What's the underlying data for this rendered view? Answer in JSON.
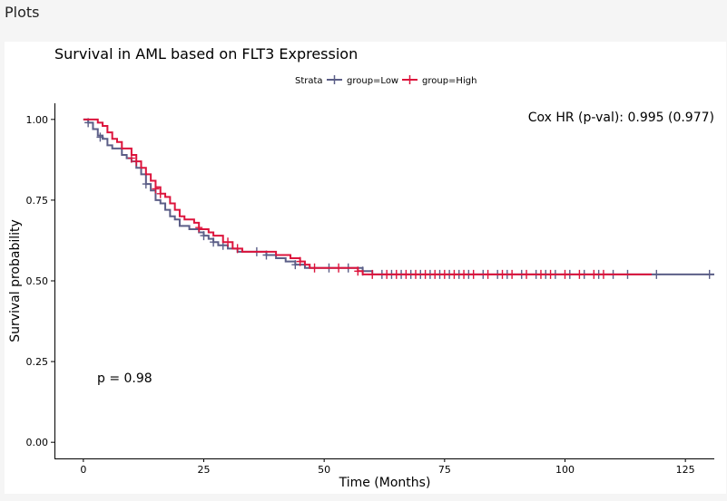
{
  "panel": {
    "title": "Plots"
  },
  "chart_data": {
    "type": "line",
    "subtype": "kaplan-meier",
    "title": "Survival in AML based on FLT3 Expression",
    "xlabel": "Time (Months)",
    "ylabel": "Survival probability",
    "xlim": [
      -6,
      131
    ],
    "ylim": [
      -0.05,
      1.05
    ],
    "xticks": [
      0,
      25,
      50,
      75,
      100,
      125
    ],
    "ytick_labels": [
      "0.00",
      "0.25",
      "0.50",
      "0.75",
      "1.00"
    ],
    "yticks": [
      0,
      0.25,
      0.5,
      0.75,
      1.0
    ],
    "legend": {
      "title": "Strata",
      "position": "top"
    },
    "annotations": {
      "cox": "Cox HR (p-val): 0.995 (0.977)",
      "pval": "p = 0.98"
    },
    "series": [
      {
        "name": "group=Low",
        "color": "#5b5e87",
        "steps": [
          [
            0,
            1.0
          ],
          [
            1,
            0.99
          ],
          [
            2,
            0.97
          ],
          [
            3,
            0.95
          ],
          [
            4,
            0.94
          ],
          [
            5,
            0.92
          ],
          [
            6,
            0.91
          ],
          [
            8,
            0.89
          ],
          [
            9,
            0.88
          ],
          [
            10,
            0.87
          ],
          [
            11,
            0.85
          ],
          [
            12,
            0.83
          ],
          [
            13,
            0.8
          ],
          [
            14,
            0.78
          ],
          [
            15,
            0.75
          ],
          [
            16,
            0.74
          ],
          [
            17,
            0.72
          ],
          [
            18,
            0.7
          ],
          [
            19,
            0.69
          ],
          [
            20,
            0.67
          ],
          [
            22,
            0.66
          ],
          [
            24,
            0.65
          ],
          [
            25,
            0.64
          ],
          [
            26,
            0.63
          ],
          [
            27,
            0.62
          ],
          [
            28,
            0.61
          ],
          [
            30,
            0.6
          ],
          [
            32,
            0.59
          ],
          [
            37,
            0.59
          ],
          [
            38,
            0.58
          ],
          [
            40,
            0.57
          ],
          [
            42,
            0.56
          ],
          [
            44,
            0.55
          ],
          [
            46,
            0.54
          ],
          [
            58,
            0.53
          ],
          [
            60,
            0.52
          ],
          [
            131,
            0.52
          ]
        ],
        "censored": [
          [
            1,
            0.99
          ],
          [
            3.5,
            0.945
          ],
          [
            13,
            0.8
          ],
          [
            25,
            0.64
          ],
          [
            27,
            0.62
          ],
          [
            29,
            0.61
          ],
          [
            36,
            0.59
          ],
          [
            38,
            0.58
          ],
          [
            44,
            0.55
          ],
          [
            51,
            0.54
          ],
          [
            55,
            0.54
          ],
          [
            58,
            0.53
          ],
          [
            62,
            0.52
          ],
          [
            64,
            0.52
          ],
          [
            66,
            0.52
          ],
          [
            68,
            0.52
          ],
          [
            70,
            0.52
          ],
          [
            72,
            0.52
          ],
          [
            74,
            0.52
          ],
          [
            76,
            0.52
          ],
          [
            78,
            0.52
          ],
          [
            80,
            0.52
          ],
          [
            83,
            0.52
          ],
          [
            86,
            0.52
          ],
          [
            88,
            0.52
          ],
          [
            91,
            0.52
          ],
          [
            94,
            0.52
          ],
          [
            96,
            0.52
          ],
          [
            98,
            0.52
          ],
          [
            101,
            0.52
          ],
          [
            104,
            0.52
          ],
          [
            107,
            0.52
          ],
          [
            110,
            0.52
          ],
          [
            113,
            0.52
          ],
          [
            119,
            0.52
          ],
          [
            130,
            0.52
          ]
        ]
      },
      {
        "name": "group=High",
        "color": "#dc143c",
        "steps": [
          [
            0,
            1.0
          ],
          [
            3,
            0.99
          ],
          [
            4,
            0.98
          ],
          [
            5,
            0.96
          ],
          [
            6,
            0.94
          ],
          [
            7,
            0.93
          ],
          [
            8,
            0.91
          ],
          [
            10,
            0.89
          ],
          [
            11,
            0.87
          ],
          [
            12,
            0.85
          ],
          [
            13,
            0.83
          ],
          [
            14,
            0.81
          ],
          [
            15,
            0.79
          ],
          [
            16,
            0.77
          ],
          [
            17,
            0.76
          ],
          [
            18,
            0.74
          ],
          [
            19,
            0.72
          ],
          [
            20,
            0.7
          ],
          [
            21,
            0.69
          ],
          [
            23,
            0.68
          ],
          [
            24,
            0.66
          ],
          [
            26,
            0.65
          ],
          [
            27,
            0.64
          ],
          [
            29,
            0.62
          ],
          [
            31,
            0.6
          ],
          [
            33,
            0.59
          ],
          [
            39,
            0.59
          ],
          [
            40,
            0.58
          ],
          [
            43,
            0.57
          ],
          [
            45,
            0.56
          ],
          [
            46,
            0.55
          ],
          [
            47,
            0.54
          ],
          [
            57,
            0.53
          ],
          [
            58,
            0.52
          ],
          [
            118,
            0.52
          ]
        ],
        "censored": [
          [
            10,
            0.88
          ],
          [
            11,
            0.87
          ],
          [
            15,
            0.785
          ],
          [
            16,
            0.77
          ],
          [
            24,
            0.665
          ],
          [
            30,
            0.62
          ],
          [
            32,
            0.6
          ],
          [
            45,
            0.56
          ],
          [
            48,
            0.54
          ],
          [
            53,
            0.54
          ],
          [
            57,
            0.53
          ],
          [
            60,
            0.52
          ],
          [
            63,
            0.52
          ],
          [
            65,
            0.52
          ],
          [
            67,
            0.52
          ],
          [
            69,
            0.52
          ],
          [
            71,
            0.52
          ],
          [
            73,
            0.52
          ],
          [
            75,
            0.52
          ],
          [
            77,
            0.52
          ],
          [
            79,
            0.52
          ],
          [
            81,
            0.52
          ],
          [
            84,
            0.52
          ],
          [
            87,
            0.52
          ],
          [
            89,
            0.52
          ],
          [
            92,
            0.52
          ],
          [
            95,
            0.52
          ],
          [
            97,
            0.52
          ],
          [
            100,
            0.52
          ],
          [
            103,
            0.52
          ],
          [
            106,
            0.52
          ],
          [
            108,
            0.52
          ]
        ]
      }
    ]
  }
}
